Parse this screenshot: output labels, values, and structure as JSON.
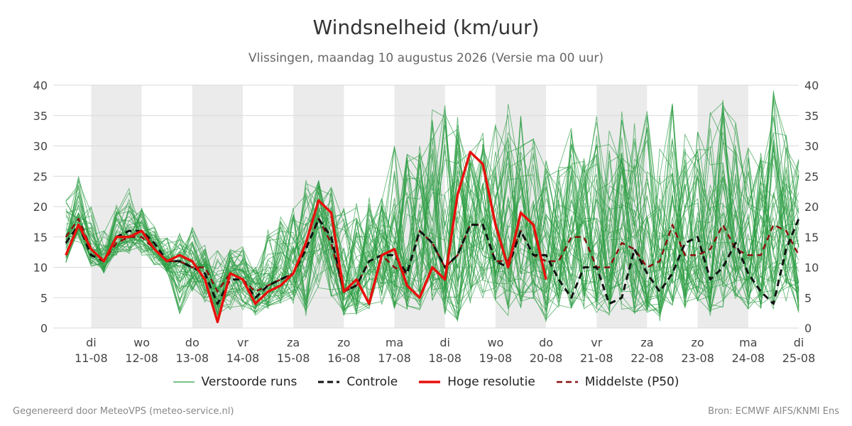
{
  "title": "Windsnelheid (km/uur)",
  "subtitle": "Vlissingen, maandag 10 augustus 2026 (Versie ma 00 uur)",
  "footer_left": "Gegenereerd door MeteoVPS (meteo-service.nl)",
  "footer_right": "Bron: ECMWF AIFS/KNMI Ens",
  "legend": [
    {
      "label": "Verstoorde runs",
      "color": "#2e9e44",
      "style": "thin"
    },
    {
      "label": "Controle",
      "color": "#111111",
      "style": "dashed"
    },
    {
      "label": "Hoge resolutie",
      "color": "#e8100c",
      "style": "solid"
    },
    {
      "label": "Middelste (P50)",
      "color": "#8b0f0f",
      "style": "dashed"
    }
  ],
  "chart_data": {
    "type": "line",
    "ylim": [
      0,
      40
    ],
    "yticks": [
      0,
      5,
      10,
      15,
      20,
      25,
      30,
      35,
      40
    ],
    "xlim_days": [
      10.25,
      25.0
    ],
    "xticks": [
      {
        "day": "di",
        "date": "11-08"
      },
      {
        "day": "wo",
        "date": "12-08"
      },
      {
        "day": "do",
        "date": "13-08"
      },
      {
        "day": "vr",
        "date": "14-08"
      },
      {
        "day": "za",
        "date": "15-08"
      },
      {
        "day": "zo",
        "date": "16-08"
      },
      {
        "day": "ma",
        "date": "17-08"
      },
      {
        "day": "di",
        "date": "18-08"
      },
      {
        "day": "wo",
        "date": "19-08"
      },
      {
        "day": "do",
        "date": "20-08"
      },
      {
        "day": "vr",
        "date": "21-08"
      },
      {
        "day": "za",
        "date": "22-08"
      },
      {
        "day": "zo",
        "date": "23-08"
      },
      {
        "day": "ma",
        "date": "24-08"
      },
      {
        "day": "di",
        "date": "25-08"
      }
    ],
    "weekend_days": [
      "11-08",
      "13-08",
      "15-08",
      "17-08",
      "19-08",
      "21-08",
      "23-08"
    ],
    "series": [
      {
        "name": "Controle",
        "x": [
          10.5,
          10.75,
          11.0,
          11.25,
          11.5,
          11.75,
          12.0,
          12.25,
          12.5,
          12.75,
          13.0,
          13.25,
          13.5,
          13.75,
          14.0,
          14.25,
          14.5,
          14.75,
          15.0,
          15.25,
          15.5,
          15.75,
          16.0,
          16.25,
          16.5,
          16.75,
          17.0,
          17.25,
          17.5,
          17.75,
          18.0,
          18.25,
          18.5,
          18.75,
          19.0,
          19.25,
          19.5,
          19.75,
          20.0,
          20.25,
          20.5,
          20.75,
          21.0,
          21.25,
          21.5,
          21.75,
          22.0,
          22.25,
          22.5,
          22.75,
          23.0,
          23.25,
          23.5,
          23.75,
          24.0,
          24.25,
          24.5,
          24.75,
          25.0
        ],
        "values": [
          14,
          17,
          12,
          11,
          15,
          16,
          16,
          14,
          11,
          11,
          10,
          9,
          4,
          8,
          8,
          5,
          7,
          8,
          9,
          13,
          18,
          15,
          6,
          7,
          11,
          12,
          12,
          9,
          16,
          14,
          10,
          12,
          17,
          17,
          11,
          10,
          16,
          12,
          12,
          8,
          5,
          10,
          10,
          4,
          5,
          13,
          9,
          6,
          9,
          14,
          15,
          8,
          10,
          14,
          9,
          6,
          4,
          13,
          18
        ]
      },
      {
        "name": "Hoge resolutie",
        "x": [
          10.5,
          10.75,
          11.0,
          11.25,
          11.5,
          11.75,
          12.0,
          12.25,
          12.5,
          12.75,
          13.0,
          13.25,
          13.5,
          13.75,
          14.0,
          14.25,
          14.5,
          14.75,
          15.0,
          15.25,
          15.5,
          15.75,
          16.0,
          16.25,
          16.5,
          16.75,
          17.0,
          17.25,
          17.5,
          17.75,
          18.0,
          18.25,
          18.5,
          18.75,
          19.0,
          19.25,
          19.5,
          19.75,
          20.0
        ],
        "values": [
          12,
          17,
          13,
          11,
          15,
          15,
          16,
          13,
          11,
          12,
          11,
          8,
          1,
          9,
          8,
          4,
          6,
          7,
          9,
          14,
          21,
          19,
          6,
          8,
          4,
          12,
          13,
          7,
          5,
          10,
          8,
          22,
          29,
          27,
          17,
          10,
          19,
          17,
          8
        ]
      },
      {
        "name": "Middelste (P50)",
        "x": [
          10.5,
          10.75,
          11.0,
          11.25,
          11.5,
          11.75,
          12.0,
          12.25,
          12.5,
          12.75,
          13.0,
          13.25,
          13.5,
          13.75,
          14.0,
          14.25,
          14.5,
          14.75,
          15.0,
          15.25,
          15.5,
          15.75,
          16.0,
          16.25,
          16.5,
          16.75,
          17.0,
          17.25,
          17.5,
          17.75,
          18.0,
          18.25,
          18.5,
          18.75,
          19.0,
          19.25,
          19.5,
          19.75,
          20.0,
          20.25,
          20.5,
          20.75,
          21.0,
          21.25,
          21.5,
          21.75,
          22.0,
          22.25,
          22.5,
          22.75,
          23.0,
          23.25,
          23.5,
          23.75,
          24.0,
          24.25,
          24.5,
          24.75,
          25.0
        ],
        "values": [
          15,
          18,
          13,
          11,
          14,
          15,
          15,
          13,
          11,
          11,
          10,
          10,
          6,
          9,
          8,
          6,
          7,
          8,
          9,
          13,
          18,
          14,
          6,
          7,
          11,
          12,
          10,
          9,
          16,
          14,
          10,
          12,
          17,
          17,
          11,
          11,
          16,
          12,
          11,
          11,
          15,
          15,
          10,
          10,
          14,
          13,
          10,
          11,
          17,
          12,
          12,
          13,
          17,
          13,
          12,
          12,
          17,
          16,
          12
        ]
      }
    ],
    "ensemble": {
      "name": "Verstoorde runs",
      "members": 50,
      "x_start_day": 10.5,
      "x_step_days": 0.25,
      "envelope_min": [
        10,
        14,
        10,
        9,
        12,
        12,
        12,
        10,
        9,
        2,
        6,
        4,
        2,
        2,
        3,
        2,
        3,
        4,
        4,
        2,
        6,
        5,
        2,
        2,
        3,
        3,
        3,
        3,
        3,
        4,
        2,
        1,
        4,
        5,
        4,
        2,
        3,
        4,
        1,
        3,
        3,
        3,
        2,
        2,
        3,
        2,
        2,
        1,
        3,
        3,
        4,
        2,
        3,
        4,
        3,
        3,
        3,
        4,
        2
      ],
      "envelope_max": [
        21,
        25,
        20,
        16,
        21,
        23,
        20,
        17,
        15,
        16,
        17,
        14,
        13,
        13,
        14,
        10,
        17,
        19,
        20,
        25,
        25,
        24,
        21,
        21,
        22,
        23,
        30,
        29,
        31,
        36,
        37,
        38,
        31,
        34,
        35,
        37,
        35,
        32,
        28,
        27,
        34,
        28,
        36,
        35,
        36,
        34,
        37,
        31,
        37,
        32,
        33,
        36,
        38,
        34,
        30,
        30,
        40,
        33,
        28
      ]
    }
  }
}
